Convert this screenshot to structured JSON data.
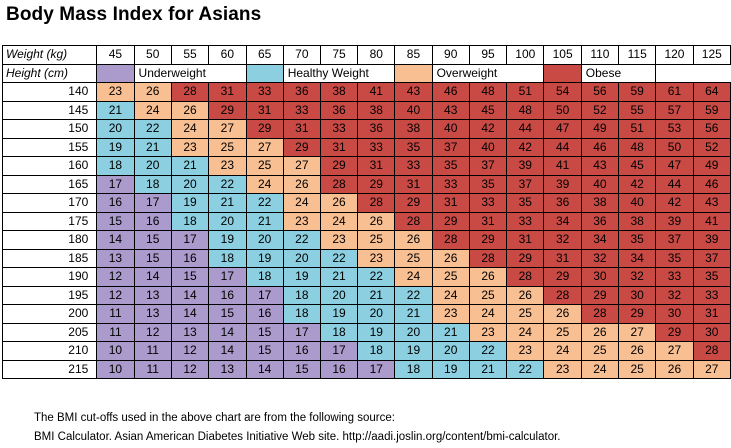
{
  "title": "Body Mass Index for Asians",
  "colors": {
    "underweight": "#ab9acc",
    "healthy": "#8ccfe0",
    "overweight": "#f8bf93",
    "obese": "#c94a44"
  },
  "chart_data": {
    "type": "heatmap",
    "title": "Body Mass Index for Asians",
    "weight_header": "Weight (kg)",
    "height_header": "Height (cm)",
    "weights": [
      "45",
      "50",
      "55",
      "60",
      "65",
      "70",
      "75",
      "80",
      "85",
      "90",
      "95",
      "100",
      "105",
      "110",
      "115",
      "120",
      "125"
    ],
    "heights": [
      "140",
      "145",
      "150",
      "155",
      "160",
      "165",
      "170",
      "175",
      "180",
      "185",
      "190",
      "195",
      "200",
      "205",
      "210",
      "215"
    ],
    "values": [
      [
        23,
        26,
        28,
        31,
        33,
        36,
        38,
        41,
        43,
        46,
        48,
        51,
        54,
        56,
        59,
        61,
        64
      ],
      [
        21,
        24,
        26,
        29,
        31,
        33,
        36,
        38,
        40,
        43,
        45,
        48,
        50,
        52,
        55,
        57,
        59
      ],
      [
        20,
        22,
        24,
        27,
        29,
        31,
        33,
        36,
        38,
        40,
        42,
        44,
        47,
        49,
        51,
        53,
        56
      ],
      [
        19,
        21,
        23,
        25,
        27,
        29,
        31,
        33,
        35,
        37,
        40,
        42,
        44,
        46,
        48,
        50,
        52
      ],
      [
        18,
        20,
        21,
        23,
        25,
        27,
        29,
        31,
        33,
        35,
        37,
        39,
        41,
        43,
        45,
        47,
        49
      ],
      [
        17,
        18,
        20,
        22,
        24,
        26,
        28,
        29,
        31,
        33,
        35,
        37,
        39,
        40,
        42,
        44,
        46
      ],
      [
        16,
        17,
        19,
        21,
        22,
        24,
        26,
        28,
        29,
        31,
        33,
        35,
        36,
        38,
        40,
        42,
        43
      ],
      [
        15,
        16,
        18,
        20,
        21,
        23,
        24,
        26,
        28,
        29,
        31,
        33,
        34,
        36,
        38,
        39,
        41
      ],
      [
        14,
        15,
        17,
        19,
        20,
        22,
        23,
        25,
        26,
        28,
        29,
        31,
        32,
        34,
        35,
        37,
        39
      ],
      [
        13,
        15,
        16,
        18,
        19,
        20,
        22,
        23,
        25,
        26,
        28,
        29,
        31,
        32,
        34,
        35,
        37
      ],
      [
        12,
        14,
        15,
        17,
        18,
        19,
        21,
        22,
        24,
        25,
        26,
        28,
        29,
        30,
        32,
        33,
        35
      ],
      [
        12,
        13,
        14,
        16,
        17,
        18,
        20,
        21,
        22,
        24,
        25,
        26,
        28,
        29,
        30,
        32,
        33
      ],
      [
        11,
        13,
        14,
        15,
        16,
        18,
        19,
        20,
        21,
        23,
        24,
        25,
        26,
        28,
        29,
        30,
        31
      ],
      [
        11,
        12,
        13,
        14,
        15,
        17,
        18,
        19,
        20,
        21,
        23,
        24,
        25,
        26,
        27,
        29,
        30
      ],
      [
        10,
        11,
        12,
        14,
        15,
        16,
        17,
        18,
        19,
        20,
        22,
        23,
        24,
        25,
        26,
        27,
        28
      ],
      [
        10,
        11,
        12,
        13,
        14,
        15,
        16,
        17,
        18,
        19,
        21,
        22,
        23,
        24,
        25,
        26,
        27
      ]
    ],
    "legend": [
      {
        "label": "Underweight",
        "category": "underweight"
      },
      {
        "label": "Healthy Weight",
        "category": "healthy"
      },
      {
        "label": "Overweight",
        "category": "overweight"
      },
      {
        "label": "Obese",
        "category": "obese"
      }
    ],
    "thresholds": {
      "healthy_min": 18,
      "overweight_min": 23,
      "obese_min": 28
    }
  },
  "footnote": {
    "line1": "The BMI cut-offs used in the above chart are from the following source:",
    "line2": "BMI Calculator. Asian American Diabetes Initiative Web site. http://aadi.joslin.org/content/bmi-calculator."
  }
}
